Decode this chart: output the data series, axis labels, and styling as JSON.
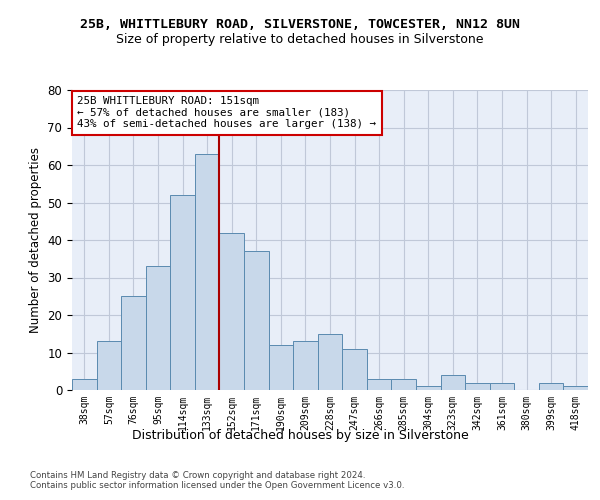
{
  "title": "25B, WHITTLEBURY ROAD, SILVERSTONE, TOWCESTER, NN12 8UN",
  "subtitle": "Size of property relative to detached houses in Silverstone",
  "xlabel": "Distribution of detached houses by size in Silverstone",
  "ylabel": "Number of detached properties",
  "bar_values": [
    3,
    13,
    25,
    33,
    52,
    63,
    42,
    37,
    12,
    13,
    15,
    11,
    3,
    3,
    1,
    4,
    2,
    2,
    0,
    2,
    1
  ],
  "bar_labels": [
    "38sqm",
    "57sqm",
    "76sqm",
    "95sqm",
    "114sqm",
    "133sqm",
    "152sqm",
    "171sqm",
    "190sqm",
    "209sqm",
    "228sqm",
    "247sqm",
    "266sqm",
    "285sqm",
    "304sqm",
    "323sqm",
    "342sqm",
    "361sqm",
    "380sqm",
    "399sqm",
    "418sqm"
  ],
  "bar_color": "#c8d8ea",
  "bar_edgecolor": "#5a8ab0",
  "vline_index": 5.5,
  "vline_color": "#aa0000",
  "annotation_line1": "25B WHITTLEBURY ROAD: 151sqm",
  "annotation_line2": "← 57% of detached houses are smaller (183)",
  "annotation_line3": "43% of semi-detached houses are larger (138) →",
  "annotation_box_facecolor": "white",
  "annotation_box_edgecolor": "#cc0000",
  "ylim": [
    0,
    80
  ],
  "yticks": [
    0,
    10,
    20,
    30,
    40,
    50,
    60,
    70,
    80
  ],
  "grid_color": "#c0c8d8",
  "plot_bg_color": "#e8eef8",
  "footer1": "Contains HM Land Registry data © Crown copyright and database right 2024.",
  "footer2": "Contains public sector information licensed under the Open Government Licence v3.0."
}
